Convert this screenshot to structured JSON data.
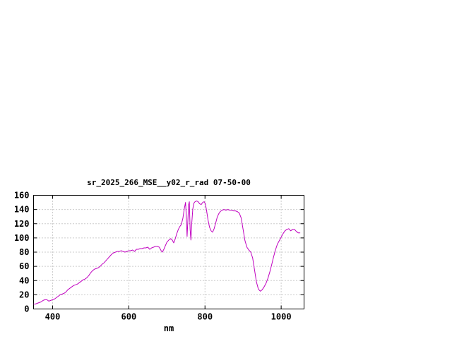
{
  "page": {
    "background": "#ffffff"
  },
  "chart_data": {
    "type": "line",
    "title": "sr_2025_266_MSE__y02_r_rad 07-50-00",
    "xlabel": "nm",
    "ylabel": "",
    "xlim": [
      350,
      1060
    ],
    "ylim": [
      0,
      160
    ],
    "xticks": [
      400,
      600,
      800,
      1000
    ],
    "yticks": [
      0,
      20,
      40,
      60,
      80,
      100,
      120,
      140,
      160
    ],
    "grid": true,
    "legend_position": "none",
    "line_color": "#c000c0",
    "grid_color": "#9a9a9a",
    "border_color": "#000000",
    "series": [
      {
        "name": "sr_2025_266_MSE__y02_r_rad",
        "points": [
          [
            350,
            7
          ],
          [
            355,
            7
          ],
          [
            360,
            8
          ],
          [
            365,
            9
          ],
          [
            370,
            10
          ],
          [
            375,
            12
          ],
          [
            380,
            13
          ],
          [
            385,
            13
          ],
          [
            390,
            11
          ],
          [
            395,
            12
          ],
          [
            400,
            13
          ],
          [
            405,
            14
          ],
          [
            410,
            16
          ],
          [
            415,
            18
          ],
          [
            420,
            20
          ],
          [
            425,
            21
          ],
          [
            430,
            22
          ],
          [
            435,
            24
          ],
          [
            440,
            27
          ],
          [
            445,
            29
          ],
          [
            450,
            31
          ],
          [
            455,
            33
          ],
          [
            460,
            34
          ],
          [
            465,
            35
          ],
          [
            470,
            37
          ],
          [
            475,
            39
          ],
          [
            480,
            41
          ],
          [
            485,
            42
          ],
          [
            490,
            44
          ],
          [
            495,
            47
          ],
          [
            500,
            51
          ],
          [
            505,
            54
          ],
          [
            510,
            56
          ],
          [
            515,
            57
          ],
          [
            520,
            58
          ],
          [
            525,
            60
          ],
          [
            530,
            63
          ],
          [
            535,
            65
          ],
          [
            540,
            68
          ],
          [
            545,
            71
          ],
          [
            550,
            74
          ],
          [
            555,
            77
          ],
          [
            560,
            79
          ],
          [
            565,
            80
          ],
          [
            570,
            81
          ],
          [
            575,
            81
          ],
          [
            580,
            82
          ],
          [
            585,
            81
          ],
          [
            590,
            80
          ],
          [
            595,
            81
          ],
          [
            600,
            82
          ],
          [
            605,
            82
          ],
          [
            610,
            83
          ],
          [
            615,
            81
          ],
          [
            620,
            84
          ],
          [
            625,
            84
          ],
          [
            630,
            85
          ],
          [
            635,
            85
          ],
          [
            640,
            86
          ],
          [
            645,
            86
          ],
          [
            650,
            87
          ],
          [
            655,
            84
          ],
          [
            660,
            86
          ],
          [
            665,
            87
          ],
          [
            670,
            88
          ],
          [
            675,
            88
          ],
          [
            680,
            87
          ],
          [
            685,
            82
          ],
          [
            688,
            80
          ],
          [
            692,
            84
          ],
          [
            696,
            89
          ],
          [
            700,
            94
          ],
          [
            705,
            97
          ],
          [
            710,
            99
          ],
          [
            714,
            97
          ],
          [
            718,
            93
          ],
          [
            722,
            99
          ],
          [
            726,
            106
          ],
          [
            730,
            112
          ],
          [
            734,
            116
          ],
          [
            738,
            119
          ],
          [
            742,
            128
          ],
          [
            746,
            142
          ],
          [
            749,
            150
          ],
          [
            751,
            131
          ],
          [
            753,
            102
          ],
          [
            755,
            124
          ],
          [
            757,
            147
          ],
          [
            759,
            151
          ],
          [
            761,
            112
          ],
          [
            763,
            97
          ],
          [
            765,
            119
          ],
          [
            768,
            141
          ],
          [
            771,
            149
          ],
          [
            774,
            151
          ],
          [
            778,
            152
          ],
          [
            782,
            151
          ],
          [
            786,
            148
          ],
          [
            790,
            147
          ],
          [
            794,
            150
          ],
          [
            798,
            151
          ],
          [
            801,
            148
          ],
          [
            804,
            139
          ],
          [
            808,
            125
          ],
          [
            812,
            115
          ],
          [
            816,
            110
          ],
          [
            820,
            108
          ],
          [
            824,
            113
          ],
          [
            828,
            121
          ],
          [
            832,
            129
          ],
          [
            836,
            134
          ],
          [
            840,
            137
          ],
          [
            845,
            139
          ],
          [
            850,
            140
          ],
          [
            855,
            139
          ],
          [
            860,
            140
          ],
          [
            865,
            139
          ],
          [
            870,
            139
          ],
          [
            875,
            138
          ],
          [
            880,
            138
          ],
          [
            885,
            137
          ],
          [
            890,
            135
          ],
          [
            895,
            128
          ],
          [
            900,
            112
          ],
          [
            905,
            96
          ],
          [
            910,
            87
          ],
          [
            915,
            83
          ],
          [
            920,
            80
          ],
          [
            925,
            72
          ],
          [
            930,
            55
          ],
          [
            935,
            38
          ],
          [
            940,
            28
          ],
          [
            945,
            25
          ],
          [
            950,
            27
          ],
          [
            955,
            31
          ],
          [
            960,
            36
          ],
          [
            965,
            43
          ],
          [
            970,
            52
          ],
          [
            975,
            62
          ],
          [
            980,
            73
          ],
          [
            985,
            83
          ],
          [
            990,
            91
          ],
          [
            995,
            96
          ],
          [
            1000,
            101
          ],
          [
            1005,
            106
          ],
          [
            1010,
            110
          ],
          [
            1015,
            112
          ],
          [
            1020,
            113
          ],
          [
            1025,
            110
          ],
          [
            1030,
            112
          ],
          [
            1035,
            112
          ],
          [
            1040,
            109
          ],
          [
            1045,
            107
          ],
          [
            1050,
            107
          ]
        ]
      }
    ]
  }
}
